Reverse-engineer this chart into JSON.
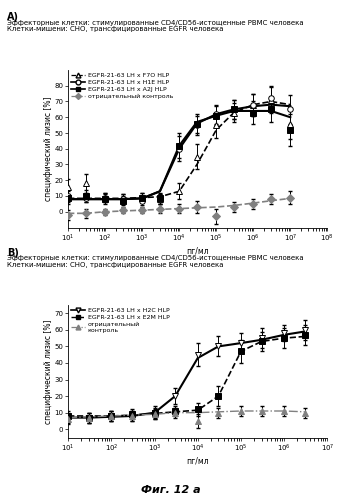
{
  "panel_A": {
    "title_line1": "Эффекторные клетки: стимулированные CD4/CD56-истощенные PBMC человека",
    "title_line2": "Клетки-мишени: CHO, трансфицированные EGFR человека",
    "xlabel": "пг/мл",
    "ylabel": "специфический лизис [%]",
    "ylim": [
      -10,
      90
    ],
    "yticks": [
      0,
      10,
      20,
      30,
      40,
      50,
      60,
      70,
      80
    ],
    "xlim_log": [
      10,
      100000000.0
    ],
    "series": [
      {
        "label": "EGFR-21-63 LH x F7O HLP",
        "linestyle": "--",
        "marker": "^",
        "color": "black",
        "mfc": "white",
        "x": [
          10,
          30,
          100,
          300,
          1000,
          3000,
          10000,
          30000,
          100000,
          300000,
          1000000,
          3000000,
          10000000
        ],
        "y": [
          16,
          18,
          9,
          8,
          9,
          8,
          13,
          35,
          55,
          63,
          68,
          71,
          56
        ],
        "yerr": [
          5,
          6,
          3,
          3,
          3,
          3,
          5,
          8,
          8,
          6,
          7,
          8,
          10
        ],
        "curve_x": [
          10,
          30,
          100,
          300,
          1000,
          3000,
          10000,
          30000,
          100000,
          300000,
          1000000,
          3000000,
          10000000
        ],
        "curve_y": [
          8.5,
          8.5,
          8.5,
          8.5,
          9,
          9.5,
          13,
          30,
          52,
          63,
          68,
          70,
          68
        ]
      },
      {
        "label": "EGFR-21-63 LH x H1E HLP",
        "linestyle": "-",
        "marker": "o",
        "color": "black",
        "mfc": "white",
        "x": [
          10,
          30,
          100,
          300,
          1000,
          3000,
          10000,
          30000,
          100000,
          300000,
          1000000,
          3000000,
          10000000
        ],
        "y": [
          10,
          9,
          9,
          8,
          7,
          8,
          40,
          55,
          62,
          65,
          68,
          72,
          65
        ],
        "yerr": [
          4,
          3,
          3,
          3,
          3,
          3,
          8,
          6,
          6,
          6,
          7,
          8,
          9
        ],
        "curve_x": [
          10,
          30,
          100,
          300,
          1000,
          3000,
          10000,
          30000,
          100000,
          300000,
          1000000,
          3000000,
          10000000
        ],
        "curve_y": [
          8,
          8,
          8,
          8,
          8.5,
          13,
          40,
          56,
          62,
          65,
          67,
          68,
          67
        ]
      },
      {
        "label": "EGFR-21-63 LH x A2J HLP",
        "linestyle": "-",
        "marker": "s",
        "color": "black",
        "mfc": "black",
        "x": [
          10,
          30,
          100,
          300,
          1000,
          3000,
          10000,
          30000,
          100000,
          300000,
          1000000,
          3000000,
          10000000
        ],
        "y": [
          9,
          10,
          8,
          7,
          9,
          9,
          42,
          56,
          61,
          65,
          63,
          65,
          52
        ],
        "yerr": [
          4,
          4,
          3,
          3,
          3,
          3,
          8,
          6,
          6,
          6,
          7,
          8,
          10
        ],
        "curve_x": [
          10,
          30,
          100,
          300,
          1000,
          3000,
          10000,
          30000,
          100000,
          300000,
          1000000,
          3000000,
          10000000
        ],
        "curve_y": [
          8,
          8,
          8,
          8,
          8.5,
          13,
          42,
          57,
          61,
          64,
          64,
          64,
          60
        ]
      },
      {
        "label": "отрицательный контроль",
        "linestyle": "--",
        "marker": "D",
        "color": "gray",
        "mfc": "gray",
        "x": [
          10,
          30,
          100,
          300,
          1000,
          3000,
          10000,
          30000,
          100000,
          300000,
          1000000,
          3000000,
          10000000
        ],
        "y": [
          -2,
          -1,
          0,
          1,
          1,
          2,
          2,
          3,
          -3,
          3,
          5,
          8,
          9
        ],
        "yerr": [
          3,
          3,
          2,
          2,
          2,
          3,
          3,
          4,
          5,
          3,
          3,
          3,
          4
        ],
        "curve_x": [
          10,
          30,
          100,
          300,
          1000,
          3000,
          10000,
          30000,
          100000,
          300000,
          1000000,
          3000000,
          10000000
        ],
        "curve_y": [
          -1,
          -1,
          0,
          0.5,
          1,
          1.5,
          2,
          2.5,
          3,
          4,
          5.5,
          7,
          8.5
        ]
      }
    ]
  },
  "panel_B": {
    "title_line1": "Эффекторные клетки: стимулированные CD4/CD56-истощенные PBMC человека",
    "title_line2": "Клетки-мишени: CHO, трансфицированные EGFR человека",
    "xlabel": "пг/мл",
    "ylabel": "специфический лизис [%]",
    "ylim": [
      -5,
      75
    ],
    "yticks": [
      0,
      10,
      20,
      30,
      40,
      50,
      60,
      70
    ],
    "xlim_log": [
      10,
      10000000.0
    ],
    "series": [
      {
        "label": "EGFR-21-63 LH x H2C HLP",
        "linestyle": "-",
        "marker": "v",
        "color": "black",
        "mfc": "white",
        "x": [
          10,
          30,
          100,
          300,
          1000,
          3000,
          10000,
          30000,
          100000,
          300000,
          1000000,
          3000000
        ],
        "y": [
          7,
          7,
          8,
          8,
          10,
          20,
          45,
          50,
          52,
          55,
          58,
          60
        ],
        "yerr": [
          3,
          3,
          3,
          3,
          4,
          5,
          7,
          6,
          6,
          6,
          5,
          6
        ],
        "curve_x": [
          10,
          30,
          100,
          300,
          1000,
          3000,
          10000,
          30000,
          100000,
          300000,
          1000000,
          3000000
        ],
        "curve_y": [
          7,
          7,
          7.5,
          8,
          10,
          20,
          43,
          50,
          52,
          54,
          57,
          59
        ]
      },
      {
        "label": "EGFR-21-63 LH x E2M HLP",
        "linestyle": "--",
        "marker": "s",
        "color": "black",
        "mfc": "black",
        "x": [
          10,
          30,
          100,
          300,
          1000,
          3000,
          10000,
          30000,
          100000,
          300000,
          1000000,
          3000000
        ],
        "y": [
          8,
          7,
          8,
          9,
          10,
          11,
          12,
          20,
          47,
          53,
          55,
          57
        ],
        "yerr": [
          3,
          3,
          3,
          3,
          3,
          3,
          4,
          6,
          7,
          6,
          6,
          6
        ],
        "curve_x": [
          10,
          30,
          100,
          300,
          1000,
          3000,
          10000,
          30000,
          100000,
          300000,
          1000000,
          3000000
        ],
        "curve_y": [
          8,
          8,
          8,
          8.5,
          9.5,
          10.5,
          11.5,
          20,
          47,
          53,
          55,
          56
        ]
      },
      {
        "label": "отрицательный\nконтроль",
        "linestyle": "-.",
        "marker": "^",
        "color": "gray",
        "mfc": "gray",
        "x": [
          10,
          30,
          100,
          300,
          1000,
          3000,
          10000,
          30000,
          100000,
          300000,
          1000000,
          3000000
        ],
        "y": [
          6,
          7,
          8,
          8,
          9,
          10,
          5,
          10,
          11,
          11,
          11,
          10
        ],
        "yerr": [
          3,
          3,
          3,
          3,
          3,
          3,
          4,
          3,
          3,
          3,
          3,
          3
        ],
        "curve_x": [
          10,
          30,
          100,
          300,
          1000,
          3000,
          10000,
          30000,
          100000,
          300000,
          1000000,
          3000000
        ],
        "curve_y": [
          7,
          7.5,
          8,
          8.5,
          9,
          10,
          10,
          10.5,
          11,
          11,
          11,
          10.5
        ]
      }
    ]
  },
  "figure_caption": "Фиг. 12 а",
  "bg_color": "#ffffff",
  "label_A": "А)",
  "label_B": "В)"
}
